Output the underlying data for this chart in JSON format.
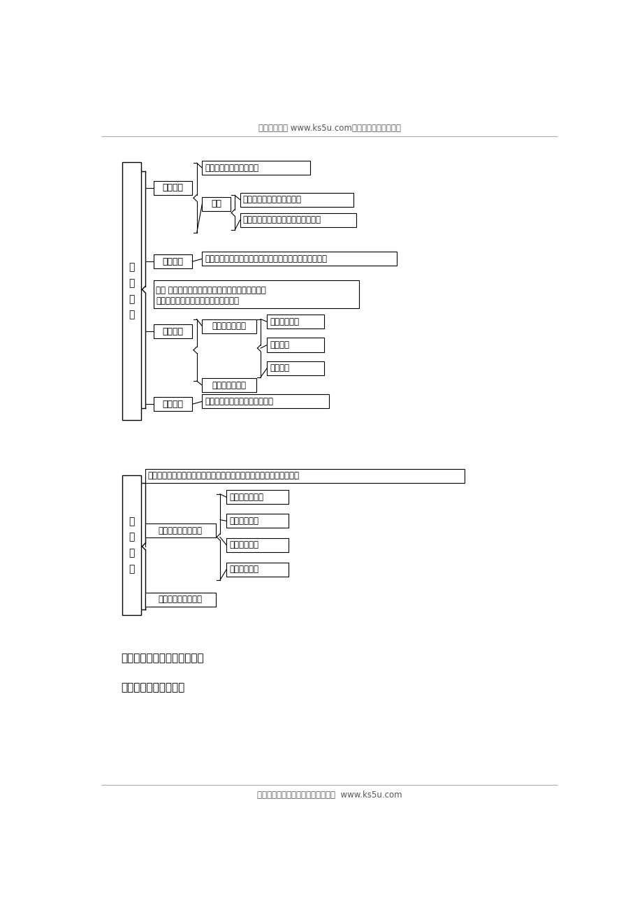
{
  "header_text": "高考资源网（ www.ks5u.com），您身边的高考专家",
  "footer_text": "欢迎广大教师踊跃来稿，稿酬丰厚。  www.ks5u.com",
  "section1_title": "人\n口\n迁\n移",
  "section2_title": "人\n口\n容\n量",
  "teaching_text": "《教学思路及学生活动设计》",
  "classroom_text": "《课堂检测》（默写）",
  "bg_color": "#ffffff",
  "box_edge_color": "#000000",
  "text_color": "#000000",
  "line_color": "#000000",
  "s1_laowu": "劳务迁移",
  "s1_nongcun": "农村剩余劳动力向城市转移",
  "s1_fazhan": "发展中国家的劳动力向发达国家转移",
  "s1_gainian_laowu": "概念：劳动力的空间移动",
  "s1_tezheng": "特征",
  "s1_nanmin": "难民迁移",
  "s1_gainian_nanmin": "概念：由于战争或自然灾害等迫使人口向安全地区的迁移",
  "s1_zhili": "智力迁移",
  "s1_gainian_zhili_line1": "概念 发展中国家的科技人才向发达国家的迁移和欠",
  "s1_gainian_zhili_line2": "发达地区的科技人才向发达地区的迁移",
  "s1_yuanyin": "智力迁移的原因",
  "s1_jingji": "经济发展水平",
  "s1_keji": "科技水平",
  "s1_shenghuo": "生活水平",
  "s1_yingxiang": "智力迁移的影响",
  "s1_qita": "其他移民",
  "s1_gainian_qita": "资源开发、大型基础设施建设等",
  "s2_gainian": "概念：一各地区在一定时期内能够容纳的享有合理生活水平的人口数量",
  "s2_yingxiang": "影响人口容量的因素",
  "s2_ziran": "自然资源与环境",
  "s2_kexue": "科学技术水平",
  "s2_diqu": "地区开放程度",
  "s2_renjun": "人均消费水平",
  "s2_queding": "确定人口容量的意义"
}
